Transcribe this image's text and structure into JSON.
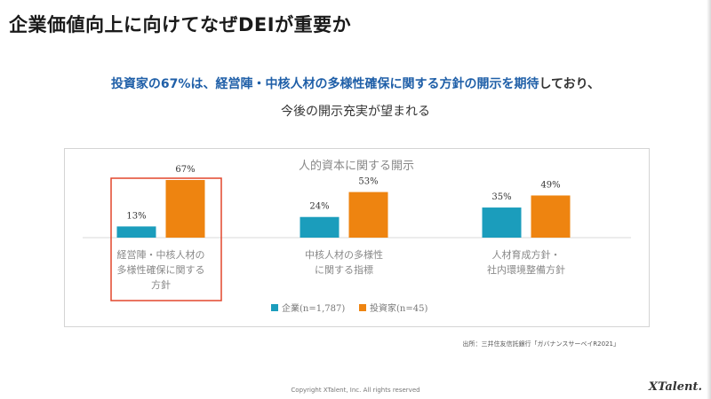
{
  "slide": {
    "title": "企業価値向上に向けてなぜDEIが重要か",
    "headline_highlight": "投資家の67%は、経営陣・中核人材の多様性確保に関する方針の開示を期待",
    "headline_rest": "しており、",
    "subline": "今後の開示充実が望まれる",
    "source": "出所：三井住友信託銀行「ガバナンスサーベイR2021」",
    "copyright": "Copyright XTalent, Inc. All rights reserved",
    "logo": "XTalent."
  },
  "colors": {
    "series_company": "#1b9dbc",
    "series_investor": "#ee8410",
    "highlight_box": "#e2462c",
    "headline_accent": "#1f5fa8"
  },
  "chart_data": {
    "type": "bar",
    "title": "人的資本に関する開示",
    "categories": [
      [
        "経営陣・中核人材の",
        "多様性確保に関する",
        "方針"
      ],
      [
        "中核人材の多様性",
        "に関する指標"
      ],
      [
        "人材育成方針・",
        "社内環境整備方針"
      ]
    ],
    "series": [
      {
        "name": "企業(n=1,787)",
        "values": [
          13,
          24,
          35
        ],
        "labels": [
          "13%",
          "24%",
          "35%"
        ]
      },
      {
        "name": "投資家(n=45)",
        "values": [
          67,
          53,
          49
        ],
        "labels": [
          "67%",
          "53%",
          "49%"
        ]
      }
    ],
    "value_unit": "%",
    "ylim": [
      0,
      100
    ],
    "grid": false,
    "legend_position": "bottom",
    "highlighted_category_index": 0
  }
}
